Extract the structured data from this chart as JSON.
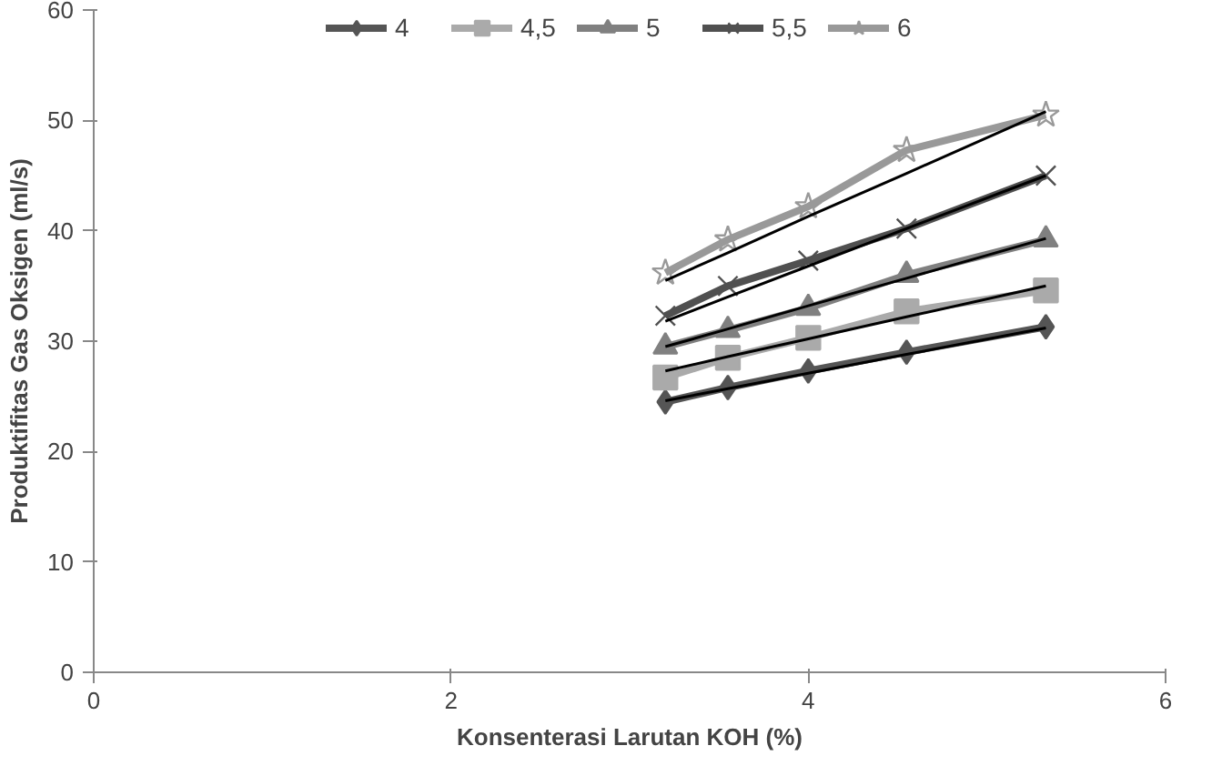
{
  "chart_data": {
    "type": "line",
    "xlabel": "Konsenterasi Larutan KOH (%)",
    "ylabel": "Produktifitas Gas Oksigen (ml/s)",
    "x": [
      3.2,
      3.55,
      4.0,
      4.55,
      5.33
    ],
    "xlim": [
      0,
      6
    ],
    "xticks": [
      0,
      2,
      4,
      6
    ],
    "ylim": [
      0,
      60
    ],
    "yticks": [
      0,
      10,
      20,
      30,
      40,
      50,
      60
    ],
    "grid": false,
    "legend": "top",
    "series": [
      {
        "name": "4",
        "color": "#555555",
        "marker": "diamond",
        "values": [
          24.5,
          25.8,
          27.3,
          29.0,
          31.3
        ]
      },
      {
        "name": "4,5",
        "color": "#aaaaaa",
        "marker": "square",
        "values": [
          26.7,
          28.5,
          30.3,
          32.7,
          34.6
        ]
      },
      {
        "name": "5",
        "color": "#808080",
        "marker": "triangle",
        "values": [
          29.5,
          31.0,
          33.0,
          36.0,
          39.2
        ]
      },
      {
        "name": "5,5",
        "color": "#505050",
        "marker": "cross",
        "values": [
          32.3,
          35.0,
          37.3,
          40.2,
          45.0
        ]
      },
      {
        "name": "6",
        "color": "#999999",
        "marker": "star",
        "values": [
          36.2,
          39.2,
          42.2,
          47.3,
          50.5
        ]
      },
      {
        "type": "line",
        "color": "#000000",
        "marker": "none",
        "values": [
          24.6,
          25.7,
          27.1,
          28.8,
          31.2
        ]
      },
      {
        "type": "line",
        "color": "#000000",
        "marker": "none",
        "values": [
          27.3,
          28.6,
          30.2,
          32.2,
          35.0
        ]
      },
      {
        "type": "line",
        "color": "#000000",
        "marker": "none",
        "values": [
          29.5,
          31.1,
          33.2,
          35.7,
          39.3
        ]
      },
      {
        "type": "line",
        "color": "#000000",
        "marker": "none",
        "values": [
          31.8,
          34.0,
          36.8,
          40.2,
          45.0
        ]
      },
      {
        "type": "line",
        "color": "#000000",
        "marker": "none",
        "values": [
          35.5,
          38.0,
          41.3,
          45.2,
          50.8
        ]
      }
    ]
  }
}
